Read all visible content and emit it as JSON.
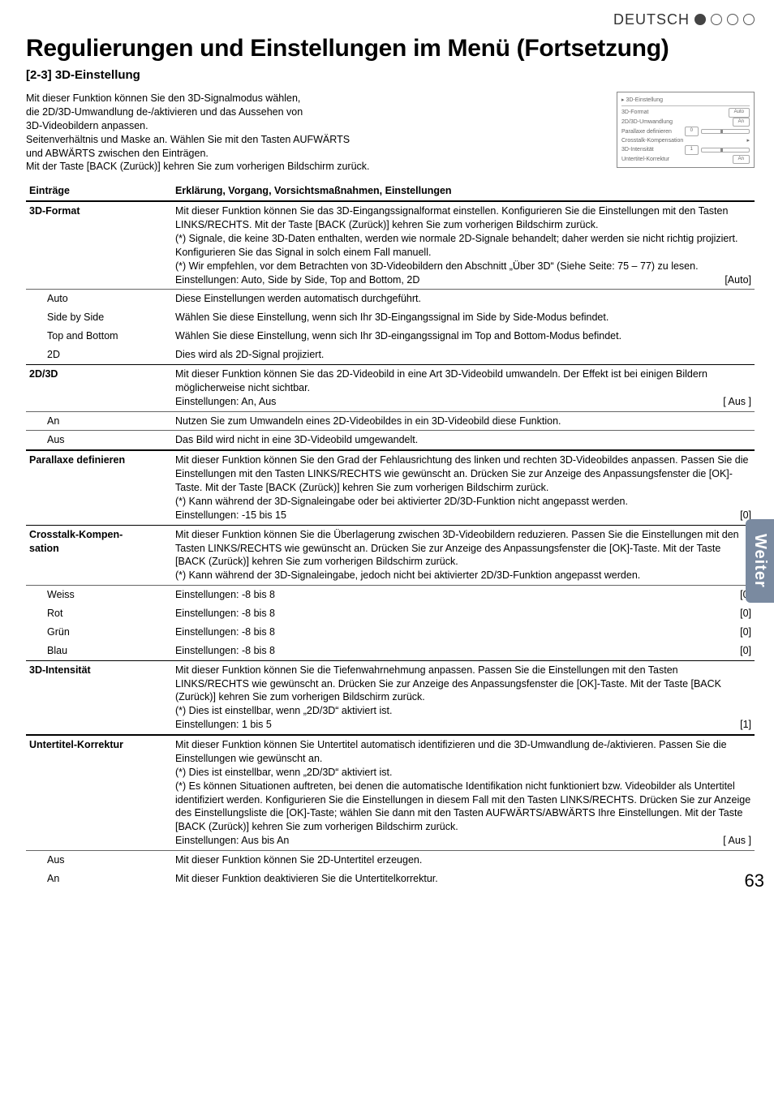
{
  "header": {
    "language": "DEUTSCH"
  },
  "title": "Regulierungen und Einstellungen im Menü (Fortsetzung)",
  "section": "[2-3] 3D-Einstellung",
  "intro": [
    "Mit dieser Funktion können Sie den 3D-Signalmodus wählen,",
    "die 2D/3D-Umwandlung de-/aktivieren und das Aussehen von",
    "3D-Videobildern anpassen.",
    "Seitenverhältnis und Maske an. Wählen Sie mit den Tasten AUFWÄRTS",
    "und ABWÄRTS zwischen den Einträgen.",
    "Mit der Taste [BACK (Zurück)] kehren Sie zum vorherigen Bildschirm zurück."
  ],
  "miniPanel": {
    "title": "3D-Einstellung",
    "rows": [
      {
        "label": "3D-Format",
        "val": "Auto"
      },
      {
        "label": "2D/3D-Umwandlung",
        "val": "An"
      },
      {
        "label": "Parallaxe definieren",
        "slider": true,
        "num": "0"
      },
      {
        "label": "Crosstalk-Kompensation",
        "arrow": true
      },
      {
        "label": "3D-Intensität",
        "slider": true,
        "num": "1"
      },
      {
        "label": "Untertitel-Korrektur",
        "val": "An"
      }
    ]
  },
  "columns": {
    "c1": "Einträge",
    "c2": "Erklärung, Vorgang, Vorsichtsmaßnahmen, Einstellungen"
  },
  "rows": [
    {
      "label": "3D-Format",
      "lines": [
        "Mit dieser Funktion können Sie das 3D-Eingangssignalformat einstellen. Konfigurieren Sie die Einstellungen mit den Tasten LINKS/RECHTS. Mit der Taste [BACK (Zurück)] kehren Sie zum vorherigen Bildschirm zurück.",
        "(*) Signale, die keine 3D-Daten enthalten, werden wie normale 2D-Signale behandelt; daher werden sie nicht richtig projiziert. Konfigurieren Sie das Signal in solch einem Fall manuell.",
        "(*) Wir empfehlen, vor dem Betrachten von 3D-Videobildern den Abschnitt „Über 3D“ (Siehe Seite: 75 – 77) zu lesen."
      ],
      "setting": "Einstellungen: Auto, Side by Side, Top and Bottom, 2D",
      "default": "[Auto]",
      "border": "heavy"
    },
    {
      "label": "Auto",
      "sub": true,
      "plain": "Diese Einstellungen werden automatisch durchgeführt.",
      "border": "thin"
    },
    {
      "label": "Side by Side",
      "sub": true,
      "plain": "Wählen Sie diese Einstellung, wenn sich Ihr 3D-Eingangssignal im Side by Side-Modus befindet."
    },
    {
      "label": "Top and Bottom",
      "sub": true,
      "plain": "Wählen Sie diese Einstellung, wenn sich Ihr 3D-eingangssignal im Top and Bottom-Modus befindet."
    },
    {
      "label": "2D",
      "sub": true,
      "plain": "Dies wird als 2D-Signal projiziert."
    },
    {
      "label": "2D/3D",
      "lines": [
        "Mit dieser Funktion können Sie das 2D-Videobild in eine Art 3D-Videobild umwandeln. Der Effekt ist bei einigen Bildern möglicherweise nicht sichtbar."
      ],
      "setting": "Einstellungen: An, Aus",
      "default": "[ Aus ]",
      "border": "top"
    },
    {
      "label": "An",
      "sub": true,
      "plain": "Nutzen Sie zum Umwandeln eines 2D-Videobildes in ein 3D-Videobild diese Funktion.",
      "border": "thin"
    },
    {
      "label": "Aus",
      "sub": true,
      "plain": "Das Bild wird nicht in eine 3D-Videobild umgewandelt.",
      "border": "thin"
    },
    {
      "label": "Parallaxe definieren",
      "lines": [
        "Mit dieser Funktion können Sie den Grad der Fehlausrichtung des linken und rechten 3D-Videobildes anpassen. Passen Sie die Einstellungen mit den Tasten LINKS/RECHTS wie gewünscht an. Drücken Sie zur Anzeige des Anpassungsfenster die [OK]-Taste. Mit der Taste [BACK (Zurück)] kehren Sie zum vorherigen Bildschirm zurück.",
        "(*) Kann während der 3D-Signaleingabe oder bei aktivierter 2D/3D-Funktion nicht angepasst werden."
      ],
      "setting": "Einstellungen: -15 bis 15",
      "default": "[0]",
      "border": "heavy"
    },
    {
      "label": "Crosstalk-Kompen-sation",
      "lines": [
        "Mit dieser Funktion können Sie die Überlagerung zwischen 3D-Videobildern reduzieren. Passen Sie die Einstellungen mit den Tasten LINKS/RECHTS wie gewünscht an. Drücken Sie zur Anzeige des Anpassungsfenster die [OK]-Taste. Mit der Taste [BACK (Zurück)] kehren Sie zum vorherigen Bildschirm zurück.",
        "(*) Kann während der 3D-Signaleingabe, jedoch nicht bei aktivierter 2D/3D-Funktion angepasst werden."
      ],
      "border": "top"
    },
    {
      "label": "Weiss",
      "sub": true,
      "setting": "Einstellungen: -8 bis 8",
      "default": "[0]",
      "border": "thin"
    },
    {
      "label": "Rot",
      "sub": true,
      "setting": "Einstellungen: -8 bis 8",
      "default": "[0]"
    },
    {
      "label": "Grün",
      "sub": true,
      "setting": "Einstellungen: -8 bis 8",
      "default": "[0]"
    },
    {
      "label": "Blau",
      "sub": true,
      "setting": "Einstellungen: -8 bis 8",
      "default": "[0]"
    },
    {
      "label": "3D-Intensität",
      "lines": [
        "Mit dieser Funktion können Sie die Tiefenwahrnehmung anpassen. Passen Sie die Einstellungen mit den Tasten LINKS/RECHTS wie gewünscht an. Drücken Sie zur Anzeige des Anpassungsfenster die [OK]-Taste. Mit der Taste [BACK (Zurück)] kehren Sie zum vorherigen Bildschirm zurück.",
        "(*) Dies ist einstellbar, wenn „2D/3D“ aktiviert ist."
      ],
      "setting": "Einstellungen: 1 bis 5",
      "default": "[1]",
      "border": "top"
    },
    {
      "label": "Untertitel-Korrektur",
      "lines": [
        "Mit dieser Funktion können Sie Untertitel automatisch identifizieren und die 3D-Umwandlung de-/aktivieren. Passen Sie die Einstellungen wie gewünscht an.",
        "(*) Dies ist einstellbar, wenn „2D/3D“ aktiviert ist.",
        "(*) Es können Situationen auftreten, bei denen die automatische Identifikation nicht funktioniert bzw. Videobilder als Untertitel identifiziert werden. Konfigurieren Sie die Einstellungen in diesem Fall mit den Tasten LINKS/RECHTS. Drücken Sie zur Anzeige des Einstellungsliste die [OK]-Taste; wählen Sie dann mit den Tasten AUFWÄRTS/ABWÄRTS Ihre Einstellungen. Mit der Taste [BACK (Zurück)] kehren Sie zum vorherigen Bildschirm zurück."
      ],
      "setting": "Einstellungen: Aus bis An",
      "default": "[ Aus ]",
      "border": "heavy"
    },
    {
      "label": "Aus",
      "sub": true,
      "plain": "Mit dieser Funktion können Sie 2D-Untertitel erzeugen.",
      "border": "thin"
    },
    {
      "label": "An",
      "sub": true,
      "plain": "Mit dieser Funktion deaktivieren Sie die Untertitelkorrektur."
    }
  ],
  "sideTab": "Weiter",
  "pageNumber": "63"
}
